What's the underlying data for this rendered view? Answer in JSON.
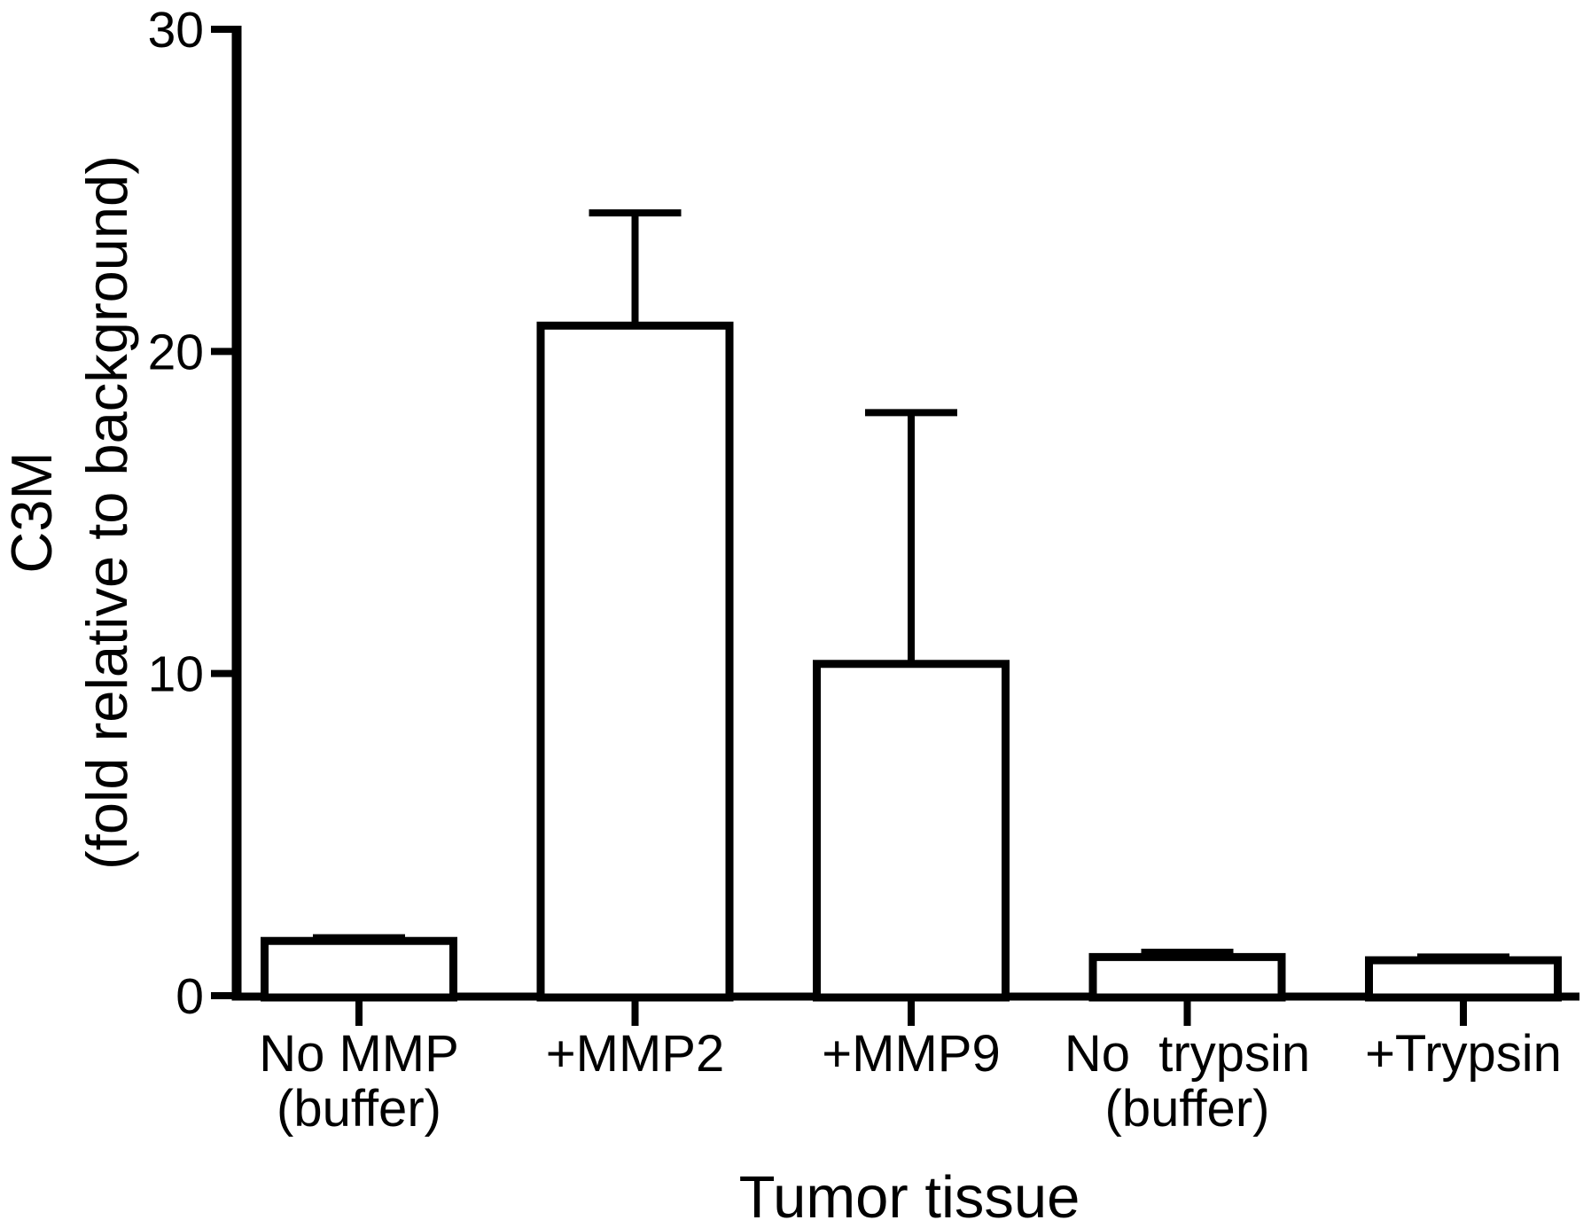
{
  "figure_title": "",
  "colors": {
    "background": "#ffffff",
    "bar_fill": "#ffffff",
    "bar_stroke": "#000000",
    "axis": "#000000",
    "text": "#000000"
  },
  "chart_data": {
    "type": "bar",
    "title": "",
    "xlabel": "Tumor tissue",
    "ylabel": "C3M (fold relative to background)",
    "ylabel_lines": [
      "C3M",
      "(fold relative to background)"
    ],
    "ylim": [
      0,
      30
    ],
    "yticks": [
      0,
      10,
      20,
      30
    ],
    "ytick_labels": [
      "0",
      "10",
      "20",
      "30"
    ],
    "grid": false,
    "legend": null,
    "categories": [
      "No MMP (buffer)",
      "+MMP2",
      "+MMP9",
      "No  trypsin (buffer)",
      "+Trypsin"
    ],
    "bars": [
      {
        "label_lines": [
          "No MMP",
          "(buffer)"
        ],
        "value": 1.7,
        "error_plus": 0.1
      },
      {
        "label_lines": [
          "+MMP2"
        ],
        "value": 20.8,
        "error_plus": 3.5
      },
      {
        "label_lines": [
          "+MMP9"
        ],
        "value": 10.3,
        "error_plus": 7.8
      },
      {
        "label_lines": [
          "No  trypsin",
          "(buffer)"
        ],
        "value": 1.2,
        "error_plus": 0.15
      },
      {
        "label_lines": [
          "+Trypsin"
        ],
        "value": 1.1,
        "error_plus": 0.1
      }
    ],
    "values": [
      1.7,
      20.8,
      10.3,
      1.2,
      1.1
    ],
    "errors_plus": [
      0.1,
      3.5,
      7.8,
      0.15,
      0.1
    ],
    "error_bar_style": "upper only, capped"
  }
}
